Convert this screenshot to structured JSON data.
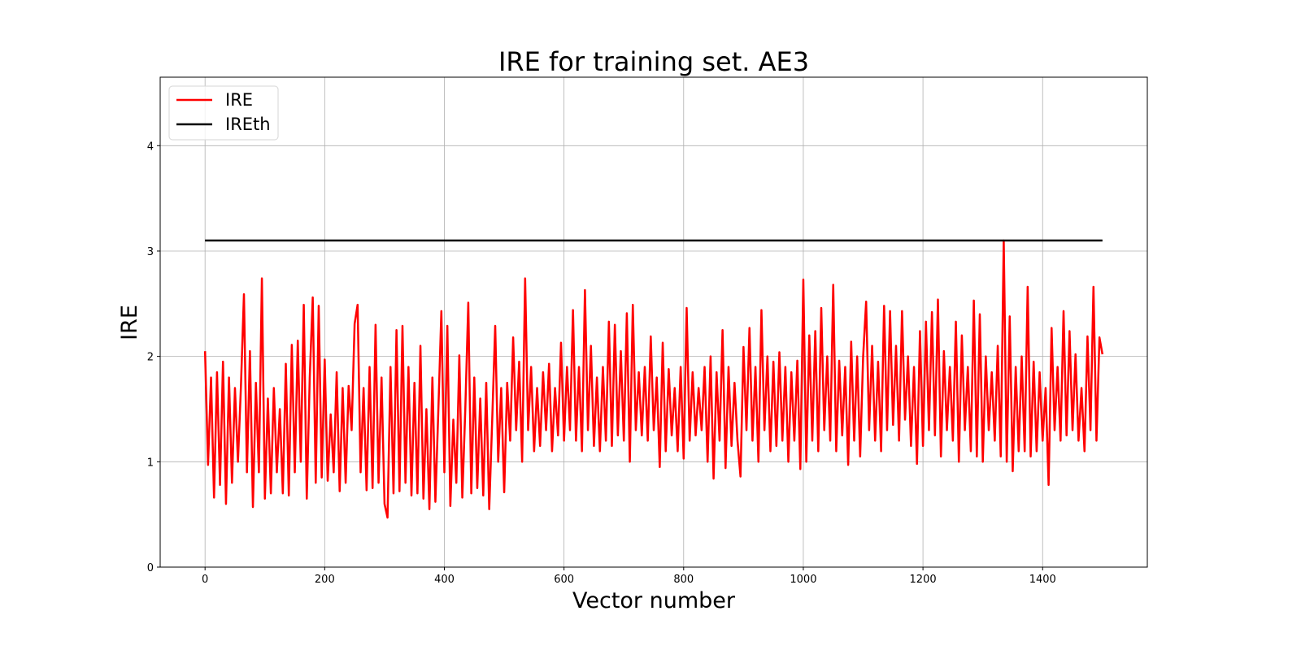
{
  "chart_data": {
    "type": "line",
    "title": "IRE for training set. AE3",
    "xlabel": "Vector number",
    "ylabel": "IRE",
    "xlim": [
      -75,
      1575
    ],
    "ylim": [
      0,
      4.65
    ],
    "xticks": [
      0,
      200,
      400,
      600,
      800,
      1000,
      1200,
      1400
    ],
    "yticks": [
      0,
      1,
      2,
      3,
      4
    ],
    "grid": true,
    "legend_position": "top-left",
    "series": [
      {
        "name": "IRE",
        "color": "#ff0000",
        "x_start": 0,
        "x_step": 5,
        "y": [
          2.05,
          0.97,
          1.8,
          0.66,
          1.85,
          0.78,
          1.95,
          0.6,
          1.8,
          0.8,
          1.7,
          1.0,
          1.72,
          2.59,
          0.9,
          2.05,
          0.57,
          1.75,
          0.9,
          2.74,
          0.65,
          1.6,
          0.7,
          1.7,
          0.9,
          1.5,
          0.7,
          1.93,
          0.68,
          2.11,
          0.9,
          2.15,
          1.0,
          2.49,
          0.65,
          1.8,
          2.56,
          0.8,
          2.48,
          0.85,
          1.97,
          0.82,
          1.45,
          0.9,
          1.85,
          0.72,
          1.7,
          0.8,
          1.72,
          1.3,
          2.31,
          2.49,
          0.9,
          1.7,
          0.73,
          1.9,
          0.75,
          2.3,
          0.8,
          1.8,
          0.6,
          0.47,
          1.9,
          0.7,
          2.25,
          0.72,
          2.29,
          0.8,
          1.9,
          0.68,
          1.75,
          0.7,
          2.1,
          0.65,
          1.5,
          0.55,
          1.8,
          0.62,
          1.5,
          2.43,
          0.9,
          2.29,
          0.58,
          1.4,
          0.8,
          2.01,
          0.66,
          1.5,
          2.51,
          0.7,
          1.8,
          0.75,
          1.6,
          0.68,
          1.75,
          0.55,
          1.4,
          2.29,
          1.0,
          1.7,
          0.71,
          1.75,
          1.2,
          2.18,
          1.3,
          1.95,
          1.0,
          2.74,
          1.3,
          1.9,
          1.1,
          1.7,
          1.15,
          1.85,
          1.3,
          1.93,
          1.1,
          1.7,
          1.25,
          2.13,
          1.2,
          1.9,
          1.3,
          2.44,
          1.2,
          1.9,
          1.1,
          2.63,
          1.3,
          2.1,
          1.15,
          1.8,
          1.1,
          1.9,
          1.2,
          2.33,
          1.15,
          2.3,
          1.25,
          2.05,
          1.2,
          2.41,
          1.0,
          2.49,
          1.3,
          1.85,
          1.25,
          1.9,
          1.2,
          2.19,
          1.3,
          1.8,
          0.95,
          2.13,
          1.1,
          1.88,
          1.25,
          1.7,
          1.1,
          1.9,
          1.03,
          2.46,
          1.2,
          1.85,
          1.25,
          1.7,
          1.3,
          1.9,
          1.0,
          2.0,
          0.84,
          1.85,
          1.2,
          2.25,
          0.94,
          1.9,
          1.15,
          1.75,
          1.2,
          0.86,
          2.09,
          1.3,
          2.27,
          1.2,
          1.9,
          1.0,
          2.44,
          1.3,
          2.0,
          1.1,
          1.95,
          1.15,
          2.04,
          1.2,
          1.9,
          1.0,
          1.85,
          1.2,
          1.96,
          0.93,
          2.73,
          1.0,
          2.2,
          1.2,
          2.24,
          1.1,
          2.46,
          1.3,
          2.0,
          1.2,
          2.68,
          1.1,
          1.96,
          1.25,
          1.9,
          0.97,
          2.14,
          1.2,
          2.0,
          1.05,
          2.0,
          2.52,
          1.3,
          2.1,
          1.2,
          1.95,
          1.1,
          2.48,
          1.3,
          2.43,
          1.35,
          2.1,
          1.2,
          2.43,
          1.4,
          2.0,
          1.15,
          1.9,
          0.98,
          2.24,
          1.15,
          2.33,
          1.3,
          2.42,
          1.25,
          2.54,
          1.05,
          2.05,
          1.3,
          1.9,
          1.2,
          2.33,
          1.0,
          2.2,
          1.3,
          1.9,
          1.1,
          2.53,
          1.05,
          2.4,
          1.0,
          2.0,
          1.3,
          1.85,
          1.2,
          2.1,
          1.05,
          3.1,
          1.0,
          2.38,
          0.91,
          1.9,
          1.1,
          2.0,
          1.1,
          2.66,
          1.05,
          1.95,
          1.1,
          1.85,
          1.2,
          1.7,
          0.78,
          2.27,
          1.3,
          1.9,
          1.2,
          2.43,
          1.25,
          2.24,
          1.3,
          2.02,
          1.2,
          1.7,
          1.1,
          2.19,
          1.3,
          2.66,
          1.2,
          2.18,
          2.02
        ]
      },
      {
        "name": "IREth",
        "color": "#000000",
        "x": [
          0,
          1500
        ],
        "y": [
          3.1,
          3.1
        ]
      }
    ]
  }
}
